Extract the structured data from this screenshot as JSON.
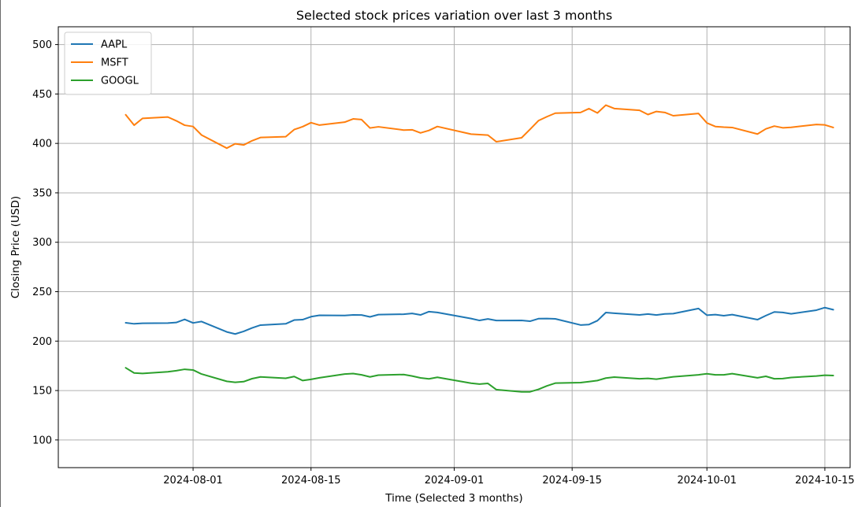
{
  "chart_data": {
    "type": "line",
    "title": "Selected stock prices variation over last 3 months",
    "xlabel": "Time (Selected 3 months)",
    "ylabel": "Closing Price (USD)",
    "ylim": [
      72,
      518
    ],
    "xlim": [
      "2024-07-16",
      "2024-10-18"
    ],
    "grid": true,
    "legend_position": "top-left",
    "x_ticks": [
      "2024-08-01",
      "2024-08-15",
      "2024-09-01",
      "2024-09-15",
      "2024-10-01",
      "2024-10-15"
    ],
    "y_ticks": [
      100,
      150,
      200,
      250,
      300,
      350,
      400,
      450,
      500
    ],
    "series": [
      {
        "name": "AAPL",
        "color": "#1f77b4",
        "points": [
          [
            "2024-07-24",
            218.5
          ],
          [
            "2024-07-25",
            217.5
          ],
          [
            "2024-07-26",
            218.0
          ],
          [
            "2024-07-29",
            218.2
          ],
          [
            "2024-07-30",
            218.8
          ],
          [
            "2024-07-31",
            222.0
          ],
          [
            "2024-08-01",
            218.4
          ],
          [
            "2024-08-02",
            219.8
          ],
          [
            "2024-08-05",
            209.3
          ],
          [
            "2024-08-06",
            207.2
          ],
          [
            "2024-08-07",
            209.8
          ],
          [
            "2024-08-08",
            213.3
          ],
          [
            "2024-08-09",
            216.2
          ],
          [
            "2024-08-12",
            217.5
          ],
          [
            "2024-08-13",
            221.3
          ],
          [
            "2024-08-14",
            221.7
          ],
          [
            "2024-08-15",
            224.7
          ],
          [
            "2024-08-16",
            226.1
          ],
          [
            "2024-08-19",
            225.9
          ],
          [
            "2024-08-20",
            226.5
          ],
          [
            "2024-08-21",
            226.4
          ],
          [
            "2024-08-22",
            224.5
          ],
          [
            "2024-08-23",
            226.8
          ],
          [
            "2024-08-26",
            227.2
          ],
          [
            "2024-08-27",
            228.0
          ],
          [
            "2024-08-28",
            226.5
          ],
          [
            "2024-08-29",
            229.8
          ],
          [
            "2024-08-30",
            229.0
          ],
          [
            "2024-09-03",
            222.8
          ],
          [
            "2024-09-04",
            220.9
          ],
          [
            "2024-09-05",
            222.4
          ],
          [
            "2024-09-06",
            220.8
          ],
          [
            "2024-09-09",
            220.9
          ],
          [
            "2024-09-10",
            220.1
          ],
          [
            "2024-09-11",
            222.7
          ],
          [
            "2024-09-12",
            222.8
          ],
          [
            "2024-09-13",
            222.5
          ],
          [
            "2024-09-16",
            216.3
          ],
          [
            "2024-09-17",
            216.8
          ],
          [
            "2024-09-18",
            220.7
          ],
          [
            "2024-09-19",
            228.9
          ],
          [
            "2024-09-20",
            228.2
          ],
          [
            "2024-09-23",
            226.5
          ],
          [
            "2024-09-24",
            227.4
          ],
          [
            "2024-09-25",
            226.4
          ],
          [
            "2024-09-26",
            227.5
          ],
          [
            "2024-09-27",
            227.8
          ],
          [
            "2024-09-30",
            233.0
          ],
          [
            "2024-10-01",
            226.2
          ],
          [
            "2024-10-02",
            226.8
          ],
          [
            "2024-10-03",
            225.7
          ],
          [
            "2024-10-04",
            226.8
          ],
          [
            "2024-10-07",
            221.7
          ],
          [
            "2024-10-08",
            225.8
          ],
          [
            "2024-10-09",
            229.5
          ],
          [
            "2024-10-10",
            229.0
          ],
          [
            "2024-10-11",
            227.6
          ],
          [
            "2024-10-14",
            231.3
          ],
          [
            "2024-10-15",
            233.9
          ],
          [
            "2024-10-16",
            231.8
          ]
        ]
      },
      {
        "name": "MSFT",
        "color": "#ff7f0e",
        "points": [
          [
            "2024-07-24",
            429.0
          ],
          [
            "2024-07-25",
            418.4
          ],
          [
            "2024-07-26",
            425.3
          ],
          [
            "2024-07-29",
            426.7
          ],
          [
            "2024-07-30",
            422.9
          ],
          [
            "2024-07-31",
            418.4
          ],
          [
            "2024-08-01",
            417.1
          ],
          [
            "2024-08-02",
            408.5
          ],
          [
            "2024-08-05",
            395.2
          ],
          [
            "2024-08-06",
            399.6
          ],
          [
            "2024-08-07",
            398.4
          ],
          [
            "2024-08-08",
            402.7
          ],
          [
            "2024-08-09",
            406.0
          ],
          [
            "2024-08-12",
            406.8
          ],
          [
            "2024-08-13",
            414.0
          ],
          [
            "2024-08-14",
            416.9
          ],
          [
            "2024-08-15",
            421.0
          ],
          [
            "2024-08-16",
            418.5
          ],
          [
            "2024-08-19",
            421.5
          ],
          [
            "2024-08-20",
            424.8
          ],
          [
            "2024-08-21",
            424.1
          ],
          [
            "2024-08-22",
            415.6
          ],
          [
            "2024-08-23",
            416.8
          ],
          [
            "2024-08-26",
            413.5
          ],
          [
            "2024-08-27",
            413.8
          ],
          [
            "2024-08-28",
            410.6
          ],
          [
            "2024-08-29",
            413.1
          ],
          [
            "2024-08-30",
            417.1
          ],
          [
            "2024-09-03",
            409.4
          ],
          [
            "2024-09-04",
            408.9
          ],
          [
            "2024-09-05",
            408.4
          ],
          [
            "2024-09-06",
            401.7
          ],
          [
            "2024-09-09",
            405.7
          ],
          [
            "2024-09-10",
            414.2
          ],
          [
            "2024-09-11",
            423.0
          ],
          [
            "2024-09-12",
            427.0
          ],
          [
            "2024-09-13",
            430.6
          ],
          [
            "2024-09-16",
            431.3
          ],
          [
            "2024-09-17",
            435.2
          ],
          [
            "2024-09-18",
            430.8
          ],
          [
            "2024-09-19",
            438.7
          ],
          [
            "2024-09-20",
            435.3
          ],
          [
            "2024-09-23",
            433.5
          ],
          [
            "2024-09-24",
            429.2
          ],
          [
            "2024-09-25",
            432.3
          ],
          [
            "2024-09-26",
            431.3
          ],
          [
            "2024-09-27",
            428.0
          ],
          [
            "2024-09-30",
            430.3
          ],
          [
            "2024-10-01",
            420.7
          ],
          [
            "2024-10-02",
            417.1
          ],
          [
            "2024-10-03",
            416.5
          ],
          [
            "2024-10-04",
            416.1
          ],
          [
            "2024-10-07",
            409.5
          ],
          [
            "2024-10-08",
            414.7
          ],
          [
            "2024-10-09",
            417.5
          ],
          [
            "2024-10-10",
            415.8
          ],
          [
            "2024-10-11",
            416.3
          ],
          [
            "2024-10-14",
            419.1
          ],
          [
            "2024-10-15",
            418.7
          ],
          [
            "2024-10-16",
            416.1
          ]
        ]
      },
      {
        "name": "GOOGL",
        "color": "#2ca02c",
        "points": [
          [
            "2024-07-24",
            173.0
          ],
          [
            "2024-07-25",
            167.8
          ],
          [
            "2024-07-26",
            167.3
          ],
          [
            "2024-07-29",
            169.0
          ],
          [
            "2024-07-30",
            170.1
          ],
          [
            "2024-07-31",
            171.5
          ],
          [
            "2024-08-01",
            170.8
          ],
          [
            "2024-08-02",
            166.7
          ],
          [
            "2024-08-05",
            159.3
          ],
          [
            "2024-08-06",
            158.3
          ],
          [
            "2024-08-07",
            159.0
          ],
          [
            "2024-08-08",
            162.0
          ],
          [
            "2024-08-09",
            163.8
          ],
          [
            "2024-08-12",
            162.4
          ],
          [
            "2024-08-13",
            164.2
          ],
          [
            "2024-08-14",
            160.1
          ],
          [
            "2024-08-15",
            161.3
          ],
          [
            "2024-08-16",
            162.9
          ],
          [
            "2024-08-19",
            166.7
          ],
          [
            "2024-08-20",
            167.2
          ],
          [
            "2024-08-21",
            165.9
          ],
          [
            "2024-08-22",
            163.8
          ],
          [
            "2024-08-23",
            165.6
          ],
          [
            "2024-08-26",
            166.2
          ],
          [
            "2024-08-27",
            164.7
          ],
          [
            "2024-08-28",
            162.8
          ],
          [
            "2024-08-29",
            161.8
          ],
          [
            "2024-08-30",
            163.4
          ],
          [
            "2024-09-03",
            157.4
          ],
          [
            "2024-09-04",
            156.5
          ],
          [
            "2024-09-05",
            157.2
          ],
          [
            "2024-09-06",
            150.9
          ],
          [
            "2024-09-09",
            148.7
          ],
          [
            "2024-09-10",
            148.7
          ],
          [
            "2024-09-11",
            151.2
          ],
          [
            "2024-09-12",
            154.7
          ],
          [
            "2024-09-13",
            157.5
          ],
          [
            "2024-09-16",
            158.0
          ],
          [
            "2024-09-17",
            159.0
          ],
          [
            "2024-09-18",
            160.1
          ],
          [
            "2024-09-19",
            162.6
          ],
          [
            "2024-09-20",
            163.6
          ],
          [
            "2024-09-23",
            161.9
          ],
          [
            "2024-09-24",
            162.3
          ],
          [
            "2024-09-25",
            161.5
          ],
          [
            "2024-09-26",
            162.7
          ],
          [
            "2024-09-27",
            163.9
          ],
          [
            "2024-09-30",
            165.9
          ],
          [
            "2024-10-01",
            167.0
          ],
          [
            "2024-10-02",
            165.9
          ],
          [
            "2024-10-03",
            165.9
          ],
          [
            "2024-10-04",
            167.1
          ],
          [
            "2024-10-07",
            162.9
          ],
          [
            "2024-10-08",
            164.4
          ],
          [
            "2024-10-09",
            161.9
          ],
          [
            "2024-10-10",
            162.1
          ],
          [
            "2024-10-11",
            163.2
          ],
          [
            "2024-10-14",
            164.7
          ],
          [
            "2024-10-15",
            165.5
          ],
          [
            "2024-10-16",
            165.2
          ]
        ]
      }
    ]
  }
}
